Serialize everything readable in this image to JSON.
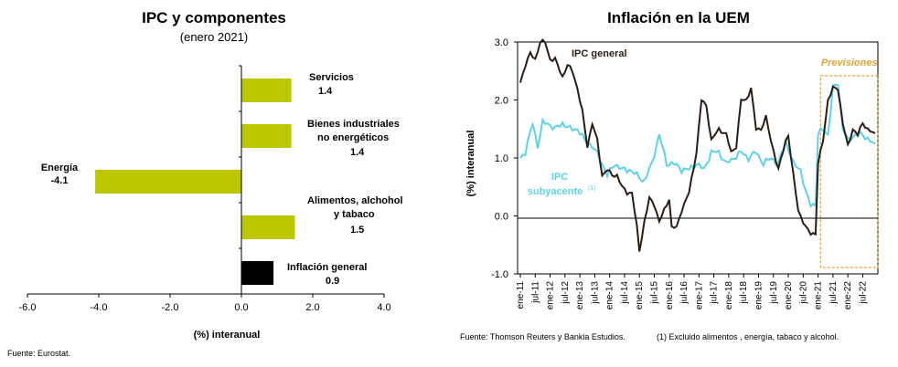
{
  "chart_data": [
    {
      "type": "bar",
      "orientation": "horizontal",
      "title": "IPC y componentes",
      "subtitle": "(enero 2021)",
      "xlabel": "(%) interanual",
      "xlim": [
        -6.0,
        4.0
      ],
      "xticks": [
        "-6.0",
        "-4.0",
        "-2.0",
        "0.0",
        "2.0",
        "4.0"
      ],
      "categories": [
        {
          "label": "Servicios",
          "value_label": "1.4",
          "value": 1.4,
          "color": "#bcc700"
        },
        {
          "label": "Bienes industriales no energéticos",
          "value_label": "1.4",
          "value": 1.4,
          "color": "#bcc700"
        },
        {
          "label": "Energía",
          "value_label": "-4.1",
          "value": -4.1,
          "color": "#bcc700"
        },
        {
          "label": "Alimentos, alchohol y tabaco",
          "value_label": "1.5",
          "value": 1.5,
          "color": "#bcc700"
        },
        {
          "label": "Inflación general",
          "value_label": "0.9",
          "value": 0.9,
          "color": "#000000"
        }
      ],
      "source": "Fuente: Eurostat."
    },
    {
      "type": "line",
      "title": "Inflación en la UEM",
      "ylabel": "(%) interanual",
      "ylim": [
        -1.0,
        3.0
      ],
      "yticks": [
        "3.0",
        "2.0",
        "1.0",
        "0.0",
        "-1.0"
      ],
      "xlim": [
        "2011-01",
        "2022-12"
      ],
      "xticks": [
        "ene-11",
        "jul-11",
        "ene-12",
        "jul-12",
        "ene-13",
        "jul-13",
        "ene-14",
        "jul-14",
        "ene-15",
        "jul-15",
        "ene-16",
        "jul-16",
        "ene-17",
        "jul-17",
        "ene-18",
        "jul-18",
        "ene-19",
        "jul-19",
        "ene-20",
        "jul-20",
        "ene-21",
        "jul-21",
        "ene-22",
        "jul-22"
      ],
      "forecast_start": "2021-02",
      "forecast_label": "Previsiones",
      "series": [
        {
          "name": "IPC general",
          "color": "#2b1d14",
          "knots": [
            [
              "2011-01",
              2.3
            ],
            [
              "2011-03",
              2.6
            ],
            [
              "2011-05",
              2.8
            ],
            [
              "2011-07",
              2.7
            ],
            [
              "2011-09",
              3.0
            ],
            [
              "2011-11",
              3.0
            ],
            [
              "2012-01",
              2.7
            ],
            [
              "2012-03",
              2.7
            ],
            [
              "2012-06",
              2.4
            ],
            [
              "2012-08",
              2.6
            ],
            [
              "2012-10",
              2.5
            ],
            [
              "2012-12",
              2.2
            ],
            [
              "2013-02",
              1.8
            ],
            [
              "2013-04",
              1.2
            ],
            [
              "2013-06",
              1.6
            ],
            [
              "2013-08",
              1.3
            ],
            [
              "2013-10",
              0.7
            ],
            [
              "2013-12",
              0.8
            ],
            [
              "2014-02",
              0.7
            ],
            [
              "2014-04",
              0.7
            ],
            [
              "2014-06",
              0.5
            ],
            [
              "2014-08",
              0.4
            ],
            [
              "2014-10",
              0.4
            ],
            [
              "2014-12",
              -0.2
            ],
            [
              "2015-01",
              -0.6
            ],
            [
              "2015-03",
              -0.1
            ],
            [
              "2015-05",
              0.3
            ],
            [
              "2015-07",
              0.2
            ],
            [
              "2015-09",
              -0.1
            ],
            [
              "2015-11",
              0.1
            ],
            [
              "2016-01",
              0.3
            ],
            [
              "2016-02",
              -0.2
            ],
            [
              "2016-04",
              -0.2
            ],
            [
              "2016-06",
              0.1
            ],
            [
              "2016-09",
              0.4
            ],
            [
              "2016-12",
              1.1
            ],
            [
              "2017-02",
              2.0
            ],
            [
              "2017-04",
              1.9
            ],
            [
              "2017-06",
              1.3
            ],
            [
              "2017-09",
              1.5
            ],
            [
              "2017-12",
              1.4
            ],
            [
              "2018-02",
              1.1
            ],
            [
              "2018-04",
              1.2
            ],
            [
              "2018-06",
              2.0
            ],
            [
              "2018-08",
              2.0
            ],
            [
              "2018-10",
              2.2
            ],
            [
              "2018-12",
              1.5
            ],
            [
              "2019-02",
              1.5
            ],
            [
              "2019-04",
              1.7
            ],
            [
              "2019-06",
              1.3
            ],
            [
              "2019-09",
              0.8
            ],
            [
              "2019-12",
              1.3
            ],
            [
              "2020-01",
              1.4
            ],
            [
              "2020-03",
              0.7
            ],
            [
              "2020-05",
              0.1
            ],
            [
              "2020-08",
              -0.2
            ],
            [
              "2020-10",
              -0.3
            ],
            [
              "2020-12",
              -0.3
            ],
            [
              "2021-01",
              0.9
            ],
            [
              "2021-03",
              1.3
            ],
            [
              "2021-05",
              2.0
            ],
            [
              "2021-07",
              2.2
            ],
            [
              "2021-09",
              2.2
            ],
            [
              "2021-11",
              1.6
            ],
            [
              "2022-01",
              1.2
            ],
            [
              "2022-03",
              1.5
            ],
            [
              "2022-05",
              1.4
            ],
            [
              "2022-07",
              1.6
            ],
            [
              "2022-09",
              1.5
            ],
            [
              "2022-12",
              1.4
            ]
          ]
        },
        {
          "name": "IPC subyacente (1)",
          "color": "#5bd3e8",
          "knots": [
            [
              "2011-01",
              1.0
            ],
            [
              "2011-03",
              1.1
            ],
            [
              "2011-06",
              1.6
            ],
            [
              "2011-08",
              1.2
            ],
            [
              "2011-10",
              1.6
            ],
            [
              "2011-12",
              1.6
            ],
            [
              "2012-03",
              1.5
            ],
            [
              "2012-06",
              1.6
            ],
            [
              "2012-09",
              1.5
            ],
            [
              "2012-12",
              1.5
            ],
            [
              "2013-03",
              1.3
            ],
            [
              "2013-06",
              1.2
            ],
            [
              "2013-09",
              1.0
            ],
            [
              "2013-12",
              0.7
            ],
            [
              "2014-03",
              0.9
            ],
            [
              "2014-06",
              0.8
            ],
            [
              "2014-09",
              0.8
            ],
            [
              "2014-12",
              0.7
            ],
            [
              "2015-03",
              0.6
            ],
            [
              "2015-06",
              0.9
            ],
            [
              "2015-09",
              1.4
            ],
            [
              "2015-12",
              0.9
            ],
            [
              "2016-03",
              0.9
            ],
            [
              "2016-06",
              0.8
            ],
            [
              "2016-09",
              0.8
            ],
            [
              "2016-12",
              0.9
            ],
            [
              "2017-03",
              0.8
            ],
            [
              "2017-06",
              1.1
            ],
            [
              "2017-09",
              1.1
            ],
            [
              "2017-12",
              0.9
            ],
            [
              "2018-03",
              1.0
            ],
            [
              "2018-06",
              1.1
            ],
            [
              "2018-09",
              1.0
            ],
            [
              "2018-12",
              1.1
            ],
            [
              "2019-03",
              0.9
            ],
            [
              "2019-06",
              1.0
            ],
            [
              "2019-09",
              0.9
            ],
            [
              "2019-12",
              1.3
            ],
            [
              "2020-03",
              0.9
            ],
            [
              "2020-06",
              0.8
            ],
            [
              "2020-08",
              0.4
            ],
            [
              "2020-10",
              0.2
            ],
            [
              "2020-12",
              0.2
            ],
            [
              "2021-01",
              1.4
            ],
            [
              "2021-03",
              1.5
            ],
            [
              "2021-05",
              1.4
            ],
            [
              "2021-07",
              2.2
            ],
            [
              "2021-09",
              2.3
            ],
            [
              "2021-11",
              1.5
            ],
            [
              "2022-01",
              1.3
            ],
            [
              "2022-04",
              1.4
            ],
            [
              "2022-07",
              1.4
            ],
            [
              "2022-10",
              1.3
            ],
            [
              "2022-12",
              1.2
            ]
          ]
        }
      ],
      "annotations": {
        "ipc_general_label": "IPC general",
        "subyacente_line1": "IPC",
        "subyacente_line2": "subyacente",
        "subyacente_sup": "(1)"
      },
      "source": "Fuente: Thomson Reuters y  Bankia Estudios.",
      "footnote": "(1) Excluido alimentos , energía, tabaco  y alcohol."
    }
  ]
}
